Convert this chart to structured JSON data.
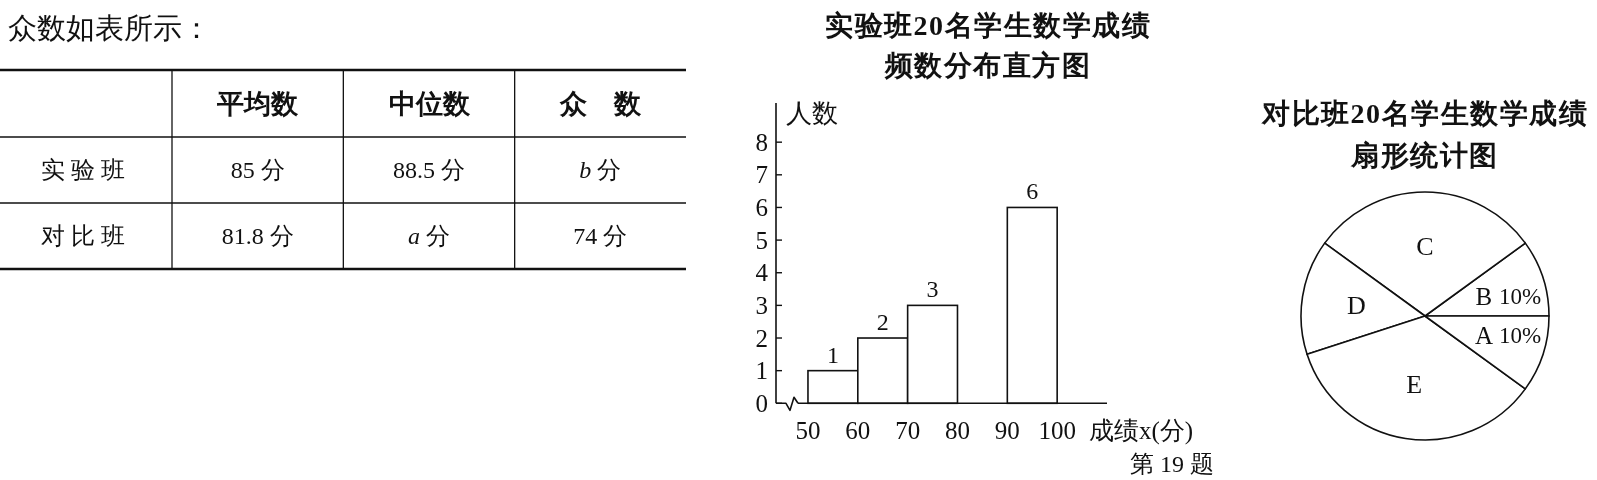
{
  "chart_data": [
    {
      "type": "other",
      "title": "众数如表所示：",
      "categories": [
        "平均数",
        "中位数",
        "众　数"
      ],
      "y_categories": [
        "实验班",
        "对比班"
      ],
      "cell_labels": [
        [
          "85 分",
          "88.5 分",
          "*b* 分"
        ],
        [
          "81.8 分",
          "*a* 分",
          "74 分"
        ]
      ]
    },
    {
      "type": "histogram",
      "title": "实验班20名学生数学成绩",
      "subtitle": "频数分布直方图",
      "xlabel": "成绩x(分)",
      "ylabel": "人数",
      "bins": [
        50,
        60,
        70,
        80,
        90,
        100
      ],
      "values": [
        1,
        2,
        3,
        null,
        6
      ],
      "color": "#ffffff",
      "xlim": [
        48,
        110
      ],
      "ylim": [
        0,
        9.2
      ],
      "xticks": [
        50,
        60,
        70,
        80,
        90,
        100
      ],
      "yticks": [
        0,
        1,
        2,
        3,
        4,
        5,
        6,
        7,
        8
      ],
      "data_labels": true,
      "annotations": [
        "第 19 题"
      ]
    },
    {
      "type": "pie",
      "title": "对比班20名学生数学成绩",
      "subtitle": "扇形统计图",
      "categories": [
        "B",
        "C",
        "D",
        "E",
        "A"
      ],
      "values": [
        10,
        30,
        15,
        35,
        10
      ],
      "colors": [
        "#ffffff",
        "#ffffff",
        "#ffffff",
        "#ffffff",
        "#ffffff"
      ],
      "value_labels": [
        "10%",
        null,
        null,
        null,
        "10%"
      ]
    }
  ]
}
